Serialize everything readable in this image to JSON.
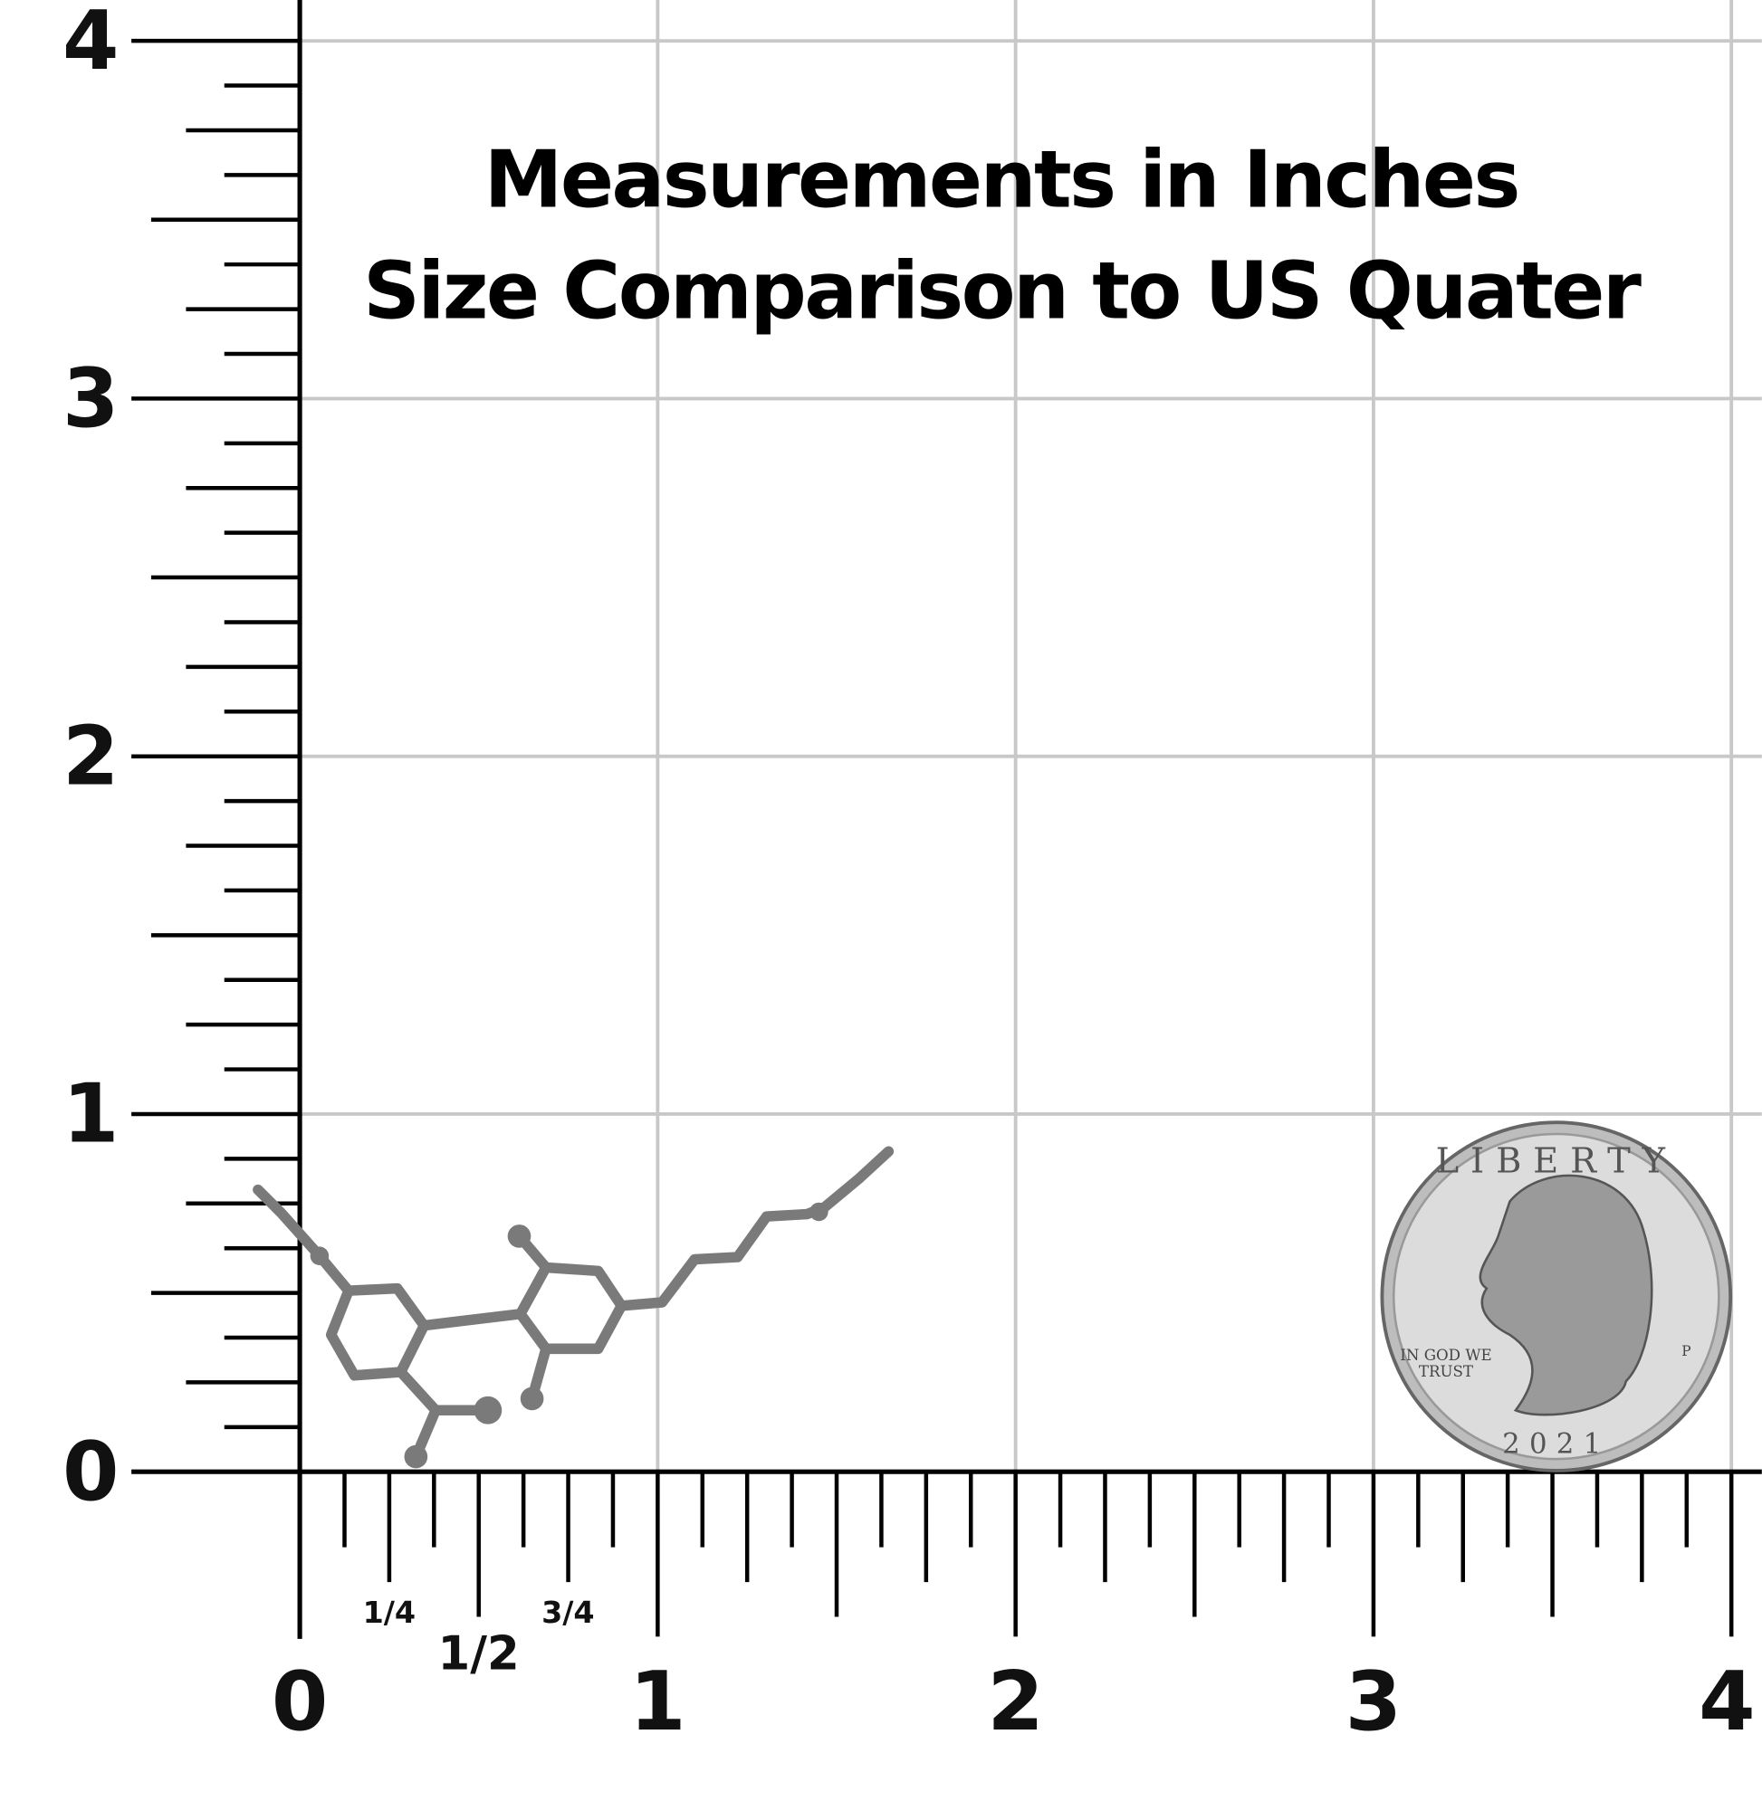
{
  "title": {
    "lines": [
      "Measurements in Inches",
      "Size Comparison to US Quater"
    ]
  },
  "ruler": {
    "x_labels": [
      "0",
      "1",
      "2",
      "3",
      "4"
    ],
    "y_labels": [
      "0",
      "1",
      "2",
      "3",
      "4"
    ],
    "fractions": [
      "1/4",
      "1/2",
      "3/4"
    ]
  },
  "coin": {
    "top": "LIBERTY",
    "motto": [
      "IN GOD WE",
      "TRUST"
    ],
    "year": "2021",
    "mint": "P"
  }
}
